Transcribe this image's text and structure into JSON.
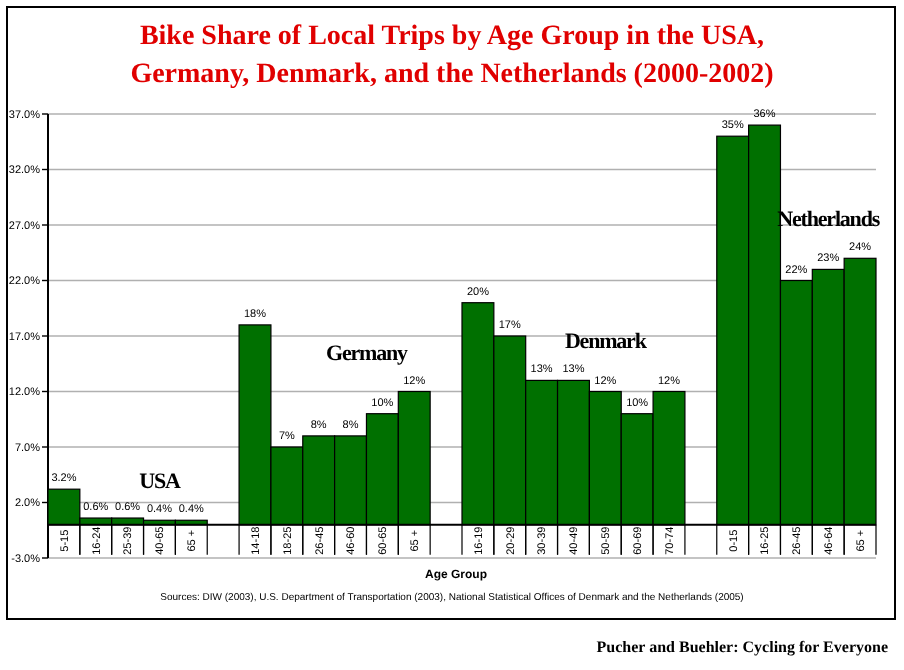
{
  "chart_data": {
    "type": "bar",
    "title": "Bike Share of Local Trips by Age Group in the USA,\nGermany, Denmark, and the Netherlands (2000-2002)",
    "xlabel": "Age Group",
    "categories": [
      "5-15",
      "16-24",
      "25-39",
      "40-65",
      "65 +",
      null,
      "14-18",
      "18-25",
      "26-45",
      "46-60",
      "60-65",
      "65 +",
      null,
      "16-19",
      "20-29",
      "30-39",
      "40-49",
      "50-59",
      "60-69",
      "70-74",
      null,
      "0-15",
      "16-25",
      "26-45",
      "46-64",
      "65 +"
    ],
    "values": [
      3.2,
      0.6,
      0.6,
      0.4,
      0.4,
      null,
      18,
      7,
      8,
      8,
      10,
      12,
      null,
      20,
      17,
      13,
      13,
      12,
      10,
      12,
      null,
      35,
      36,
      22,
      23,
      24
    ],
    "value_labels": [
      "3.2%",
      "0.6%",
      "0.6%",
      "0.4%",
      "0.4%",
      null,
      "18%",
      "7%",
      "8%",
      "8%",
      "10%",
      "12%",
      null,
      "20%",
      "17%",
      "13%",
      "13%",
      "12%",
      "10%",
      "12%",
      null,
      "35%",
      "36%",
      "22%",
      "23%",
      "24%"
    ],
    "color": "#007000",
    "ylim": [
      -3,
      37
    ],
    "yticks": [
      {
        "value": -3,
        "label": "-3.0%"
      },
      {
        "value": 2,
        "label": "2.0%"
      },
      {
        "value": 7,
        "label": "7.0%"
      },
      {
        "value": 12,
        "label": "12.0%"
      },
      {
        "value": 17,
        "label": "17.0%"
      },
      {
        "value": 22,
        "label": "22.0%"
      },
      {
        "value": 27,
        "label": "27.0%"
      },
      {
        "value": 32,
        "label": "32.0%"
      },
      {
        "value": 37,
        "label": "37.0%"
      }
    ],
    "grid": "y",
    "annotations": [
      "USA",
      "Germany",
      "Denmark",
      "Netherlands",
      "Sources: DIW (2003), U.S. Department of Transportation (2003), National Statistical Offices of Denmark and the Netherlands (2005)",
      "Pucher and Buehler:  Cycling for Everyone"
    ]
  }
}
